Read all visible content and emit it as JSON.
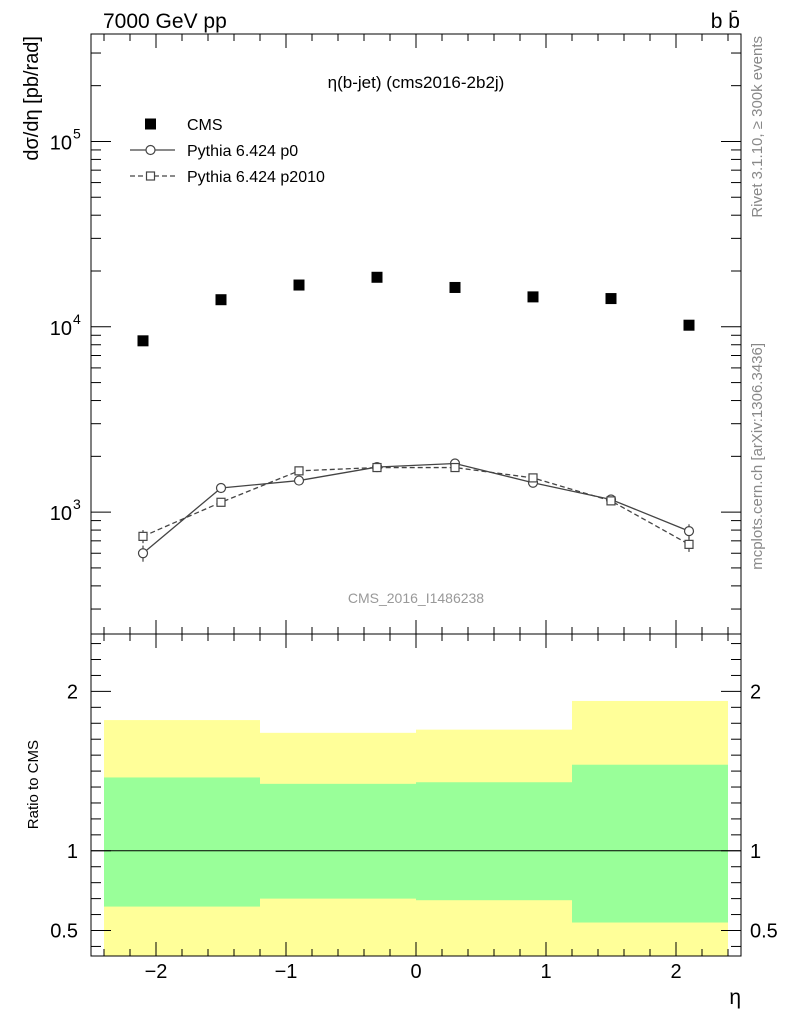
{
  "header": {
    "left": "7000 GeV pp",
    "right": "b b̄"
  },
  "side_labels": {
    "rivet": "Rivet 3.1.10, ≥ 300k events",
    "mcplots": "mcplots.cern.ch [arXiv:1306.3436]"
  },
  "chart_data": [
    {
      "type": "scatter",
      "title": "η(b-jet) (cms2016-2b2j)",
      "watermark": "CMS_2016_I1486238",
      "ylabel": "dσ/dη [pb/rad]",
      "xlabel": "",
      "yscale": "log",
      "xlim": [
        -2.5,
        2.5
      ],
      "ylim": [
        220,
        380000
      ],
      "x_ticks": [
        -2,
        -1,
        0,
        1,
        2
      ],
      "y_ticks": [
        {
          "value": 1000,
          "label": "10",
          "exp": "3"
        },
        {
          "value": 10000,
          "label": "10",
          "exp": "4"
        },
        {
          "value": 100000,
          "label": "10",
          "exp": "5"
        }
      ],
      "legend_position": "top-left",
      "series": [
        {
          "name": "CMS",
          "marker": "filled-square",
          "color": "#000000",
          "x": [
            -2.1,
            -1.5,
            -0.9,
            -0.3,
            0.3,
            0.9,
            1.5,
            2.1
          ],
          "y": [
            8400,
            14000,
            16800,
            18500,
            16300,
            14500,
            14200,
            10200
          ]
        },
        {
          "name": "Pythia 6.424 p0",
          "marker": "open-circle",
          "line": "solid",
          "color": "#444444",
          "x": [
            -2.1,
            -1.5,
            -0.9,
            -0.3,
            0.3,
            0.9,
            1.5,
            2.1
          ],
          "y": [
            600,
            1350,
            1480,
            1750,
            1830,
            1440,
            1170,
            790
          ],
          "err": [
            60,
            50,
            40,
            50,
            50,
            40,
            60,
            70
          ]
        },
        {
          "name": "Pythia 6.424 p2010",
          "marker": "open-square",
          "line": "dashed",
          "color": "#444444",
          "x": [
            -2.1,
            -1.5,
            -0.9,
            -0.3,
            0.3,
            0.9,
            1.5,
            2.1
          ],
          "y": [
            740,
            1130,
            1670,
            1740,
            1740,
            1530,
            1150,
            670
          ],
          "err": [
            60,
            50,
            50,
            40,
            40,
            40,
            50,
            60
          ]
        }
      ]
    },
    {
      "type": "area",
      "ylabel": "Ratio to CMS",
      "xlabel": "η",
      "xlim": [
        -2.5,
        2.5
      ],
      "ylim": [
        0.34,
        2.36
      ],
      "x_ticks": [
        -2,
        -1,
        0,
        1,
        2
      ],
      "y_ticks": [
        0.5,
        1,
        2
      ],
      "reference_line": 1,
      "bands": [
        {
          "name": "outer",
          "color": "#ffff99",
          "bins": [
            {
              "lo": -2.4,
              "hi": -1.2,
              "low": 0.34,
              "high": 1.82
            },
            {
              "lo": -1.2,
              "hi": 0.0,
              "low": 0.34,
              "high": 1.74
            },
            {
              "lo": 0.0,
              "hi": 1.2,
              "low": 0.34,
              "high": 1.76
            },
            {
              "lo": 1.2,
              "hi": 2.4,
              "low": 0.34,
              "high": 1.94
            }
          ]
        },
        {
          "name": "inner",
          "color": "#99ff99",
          "bins": [
            {
              "lo": -2.4,
              "hi": -1.2,
              "low": 0.65,
              "high": 1.46
            },
            {
              "lo": -1.2,
              "hi": 0.0,
              "low": 0.7,
              "high": 1.42
            },
            {
              "lo": 0.0,
              "hi": 1.2,
              "low": 0.69,
              "high": 1.43
            },
            {
              "lo": 1.2,
              "hi": 2.4,
              "low": 0.55,
              "high": 1.54
            }
          ]
        }
      ]
    }
  ]
}
